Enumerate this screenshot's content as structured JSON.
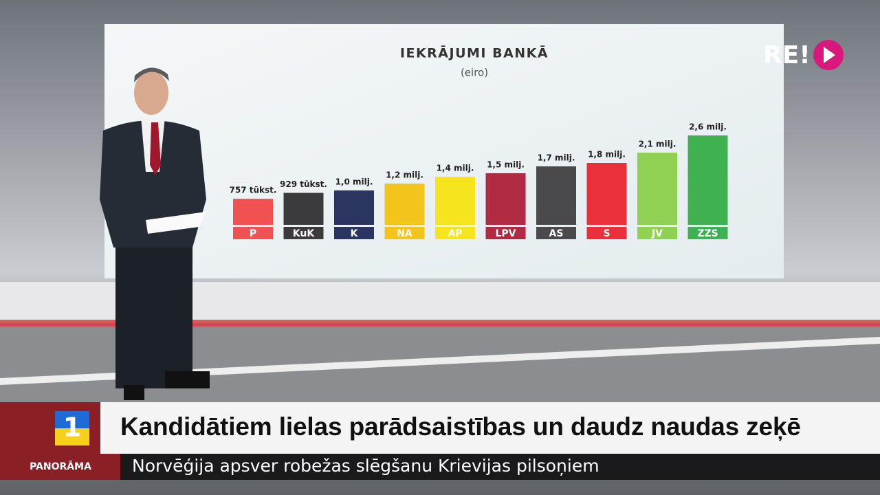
{
  "chart_data": {
    "type": "bar",
    "title": "IEKRĀJUMI BANKĀ",
    "subtitle": "(eiro)",
    "categories": [
      "P",
      "KuK",
      "K",
      "NA",
      "AP",
      "LPV",
      "AS",
      "S",
      "JV",
      "ZZS"
    ],
    "values": [
      757000,
      929000,
      1000000,
      1200000,
      1400000,
      1500000,
      1700000,
      1800000,
      2100000,
      2600000
    ],
    "value_labels": [
      "757 tūkst.",
      "929 tūkst.",
      "1,0 milj.",
      "1,2 milj.",
      "1,4 milj.",
      "1,5 milj.",
      "1,7 milj.",
      "1,8 milj.",
      "2,1 milj.",
      "2,6 milj."
    ],
    "colors": [
      "#f05252",
      "#3b3b3d",
      "#2b3561",
      "#f2c41c",
      "#f6e51e",
      "#b02a42",
      "#4a4a4c",
      "#e9303b",
      "#8fd152",
      "#3fb150"
    ]
  },
  "logo": "RE!",
  "channel_number": "1",
  "program": "PANORĀMA",
  "headline": "Kandidātiem lielas parādsaistības un daudz naudas zeķē",
  "ticker": "Norvēģija apsver robežas slēgšanu Krievijas pilsoņiem"
}
